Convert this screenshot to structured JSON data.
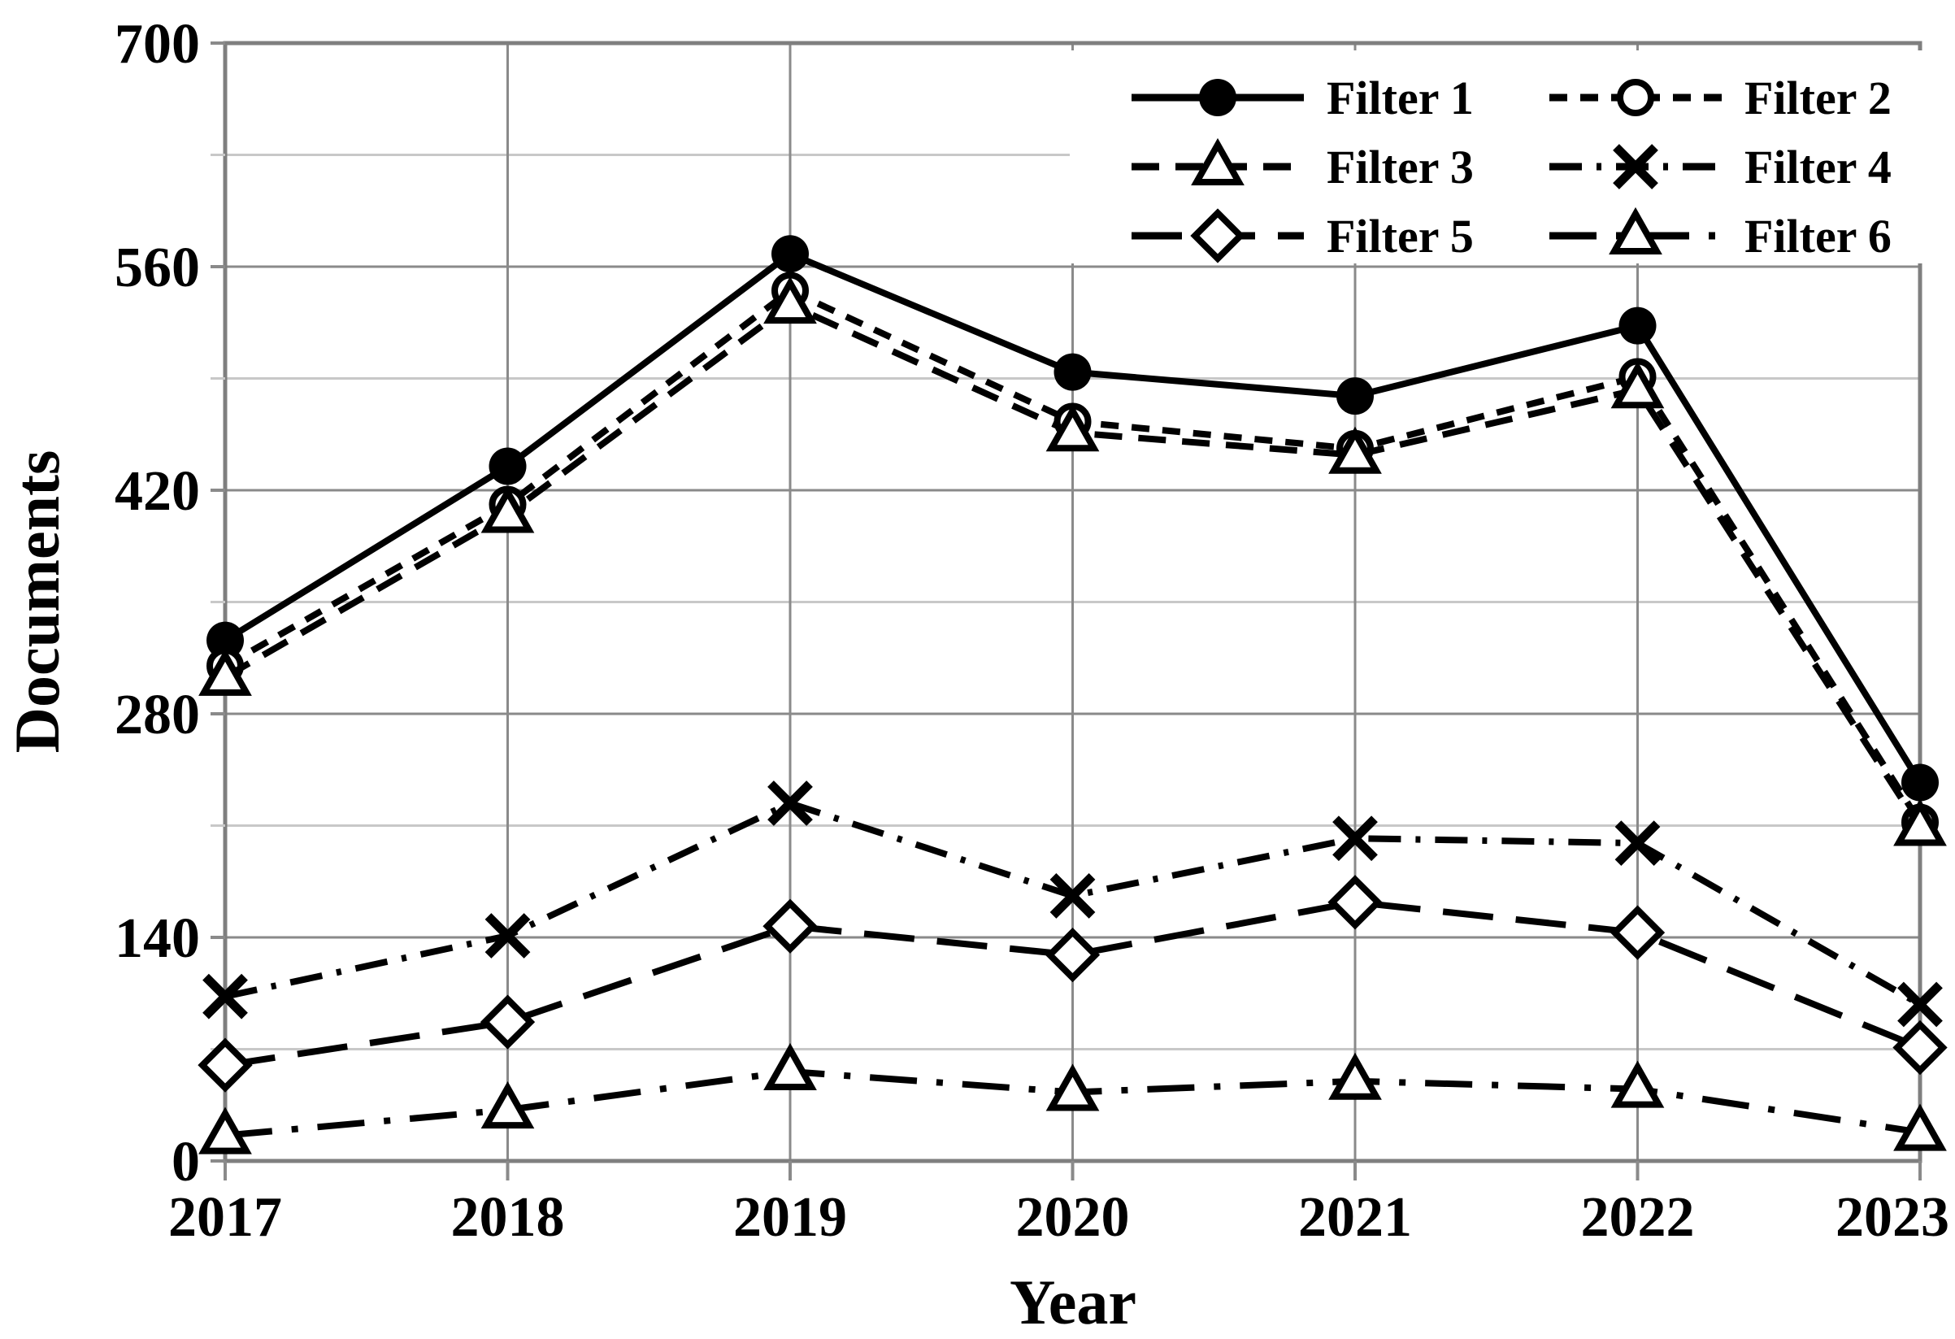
{
  "chart_data": {
    "type": "line",
    "title": "",
    "xlabel": "Year",
    "ylabel": "Documents",
    "categories": [
      "2017",
      "2018",
      "2019",
      "2020",
      "2021",
      "2022",
      "2023"
    ],
    "ylim": [
      0,
      700
    ],
    "yticks": [
      0,
      140,
      280,
      420,
      560,
      700
    ],
    "y_minor_ticks": [
      70,
      210,
      350,
      490,
      630
    ],
    "grid": true,
    "legend_position": "top-right-inside",
    "legend_columns": 2,
    "series": [
      {
        "name": "Filter 1",
        "marker": "circle-filled",
        "line": "solid",
        "values": [
          326,
          435,
          568,
          494,
          479,
          523,
          237
        ]
      },
      {
        "name": "Filter 2",
        "marker": "circle-open",
        "line": "dash-short",
        "values": [
          310,
          411,
          545,
          463,
          446,
          491,
          212
        ]
      },
      {
        "name": "Filter 3",
        "marker": "triangle-open",
        "line": "dash-medium",
        "values": [
          303,
          405,
          536,
          456,
          442,
          483,
          209
        ]
      },
      {
        "name": "Filter 4",
        "marker": "x",
        "line": "dash-dot",
        "values": [
          103,
          141,
          224,
          166,
          202,
          199,
          98
        ]
      },
      {
        "name": "Filter 5",
        "marker": "diamond-open",
        "line": "dash-long",
        "values": [
          60,
          87,
          147,
          129,
          162,
          143,
          71
        ]
      },
      {
        "name": "Filter 6",
        "marker": "triangle-open",
        "line": "dash-dot-long",
        "values": [
          16,
          32,
          56,
          43,
          50,
          45,
          18
        ]
      }
    ],
    "colors": {
      "series": "#000000",
      "grid_major": "#8a8a8a",
      "grid_minor": "#c8c8c8",
      "border": "#7f7f7f",
      "text": "#000000",
      "legend_background": "#ffffff"
    }
  }
}
